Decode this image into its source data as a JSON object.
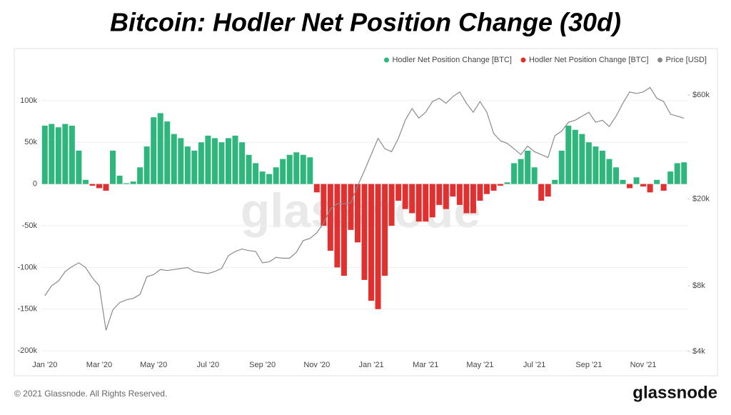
{
  "chart_data": {
    "type": "bar",
    "title": "Bitcoin: Hodler Net Position Change (30d)",
    "watermark": "glassnode",
    "footer": "© 2021 Glassnode. All Rights Reserved.",
    "logo": "glassnode",
    "categories": [
      "Jan '20",
      null,
      null,
      null,
      null,
      null,
      null,
      null,
      "Mar '20",
      null,
      null,
      null,
      null,
      null,
      null,
      null,
      "May '20",
      null,
      null,
      null,
      null,
      null,
      null,
      null,
      "Jul '20",
      null,
      null,
      null,
      null,
      null,
      null,
      null,
      "Sep '20",
      null,
      null,
      null,
      null,
      null,
      null,
      null,
      "Nov '20",
      null,
      null,
      null,
      null,
      null,
      null,
      null,
      "Jan '21",
      null,
      null,
      null,
      null,
      null,
      null,
      null,
      "Mar '21",
      null,
      null,
      null,
      null,
      null,
      null,
      null,
      "May '21",
      null,
      null,
      null,
      null,
      null,
      null,
      null,
      "Jul '21",
      null,
      null,
      null,
      null,
      null,
      null,
      null,
      "Sep '21",
      null,
      null,
      null,
      null,
      null,
      null,
      null,
      "Nov '21",
      null,
      null,
      null,
      null,
      null,
      null
    ],
    "series": [
      {
        "name": "Hodler Net Position Change [BTC]",
        "color": "#2fb67c",
        "values": [
          70000,
          72000,
          68000,
          72000,
          70000,
          40000,
          5000,
          null,
          null,
          null,
          40000,
          10000,
          1000,
          3000,
          20000,
          45000,
          80000,
          85000,
          75000,
          60000,
          55000,
          45000,
          40000,
          50000,
          58000,
          55000,
          50000,
          55000,
          58000,
          50000,
          35000,
          25000,
          15000,
          12000,
          20000,
          30000,
          35000,
          38000,
          35000,
          32000,
          null,
          null,
          null,
          null,
          null,
          null,
          null,
          null,
          null,
          null,
          null,
          null,
          null,
          null,
          null,
          null,
          null,
          null,
          null,
          null,
          null,
          null,
          null,
          null,
          null,
          null,
          null,
          null,
          2000,
          25000,
          30000,
          40000,
          20000,
          null,
          null,
          5000,
          40000,
          70000,
          65000,
          60000,
          50000,
          45000,
          40000,
          30000,
          20000,
          5000,
          null,
          8000,
          null,
          null,
          5000,
          null,
          15000,
          25000,
          26000
        ]
      },
      {
        "name": "Hodler Net Position Change [BTC]",
        "color": "#e0302f",
        "values": [
          null,
          null,
          null,
          null,
          null,
          null,
          null,
          -2000,
          -5000,
          -8000,
          null,
          null,
          null,
          null,
          null,
          null,
          null,
          null,
          null,
          null,
          null,
          null,
          null,
          null,
          null,
          null,
          null,
          null,
          null,
          null,
          null,
          null,
          null,
          null,
          null,
          null,
          null,
          null,
          null,
          null,
          -10000,
          -50000,
          -80000,
          -100000,
          -110000,
          -55000,
          -70000,
          -115000,
          -140000,
          -150000,
          -110000,
          -50000,
          -20000,
          -30000,
          -35000,
          -45000,
          -45000,
          -40000,
          -25000,
          -30000,
          -15000,
          -25000,
          -35000,
          -35000,
          -20000,
          -12000,
          -8000,
          -2000,
          null,
          null,
          null,
          null,
          null,
          -20000,
          -15000,
          null,
          null,
          null,
          null,
          null,
          null,
          null,
          null,
          null,
          null,
          null,
          -5000,
          null,
          -3000,
          -10000,
          null,
          -8000,
          null,
          null,
          null
        ]
      },
      {
        "name": "Price [USD]",
        "color": "#8a8a8a",
        "type": "line",
        "axis": "y2",
        "values": [
          7200,
          8000,
          8400,
          9300,
          9800,
          10200,
          9700,
          8700,
          8000,
          5000,
          6200,
          6700,
          6900,
          7000,
          7300,
          8800,
          9000,
          9500,
          9400,
          9500,
          9600,
          9700,
          9300,
          9200,
          9100,
          9300,
          9600,
          11000,
          11500,
          11800,
          11600,
          11500,
          10200,
          10300,
          10800,
          10700,
          10700,
          11400,
          12900,
          13200,
          14000,
          15500,
          18000,
          19000,
          19000,
          19200,
          23000,
          27000,
          32000,
          38000,
          34000,
          33000,
          38000,
          46000,
          52000,
          47000,
          50000,
          56000,
          58000,
          55000,
          59000,
          62000,
          55000,
          50000,
          56000,
          50000,
          40000,
          37000,
          36000,
          34000,
          32000,
          35000,
          33000,
          32000,
          31000,
          39000,
          41000,
          45000,
          46000,
          48000,
          50000,
          45000,
          46000,
          43000,
          48000,
          55000,
          62000,
          61000,
          62000,
          65000,
          58000,
          56000,
          49000,
          48000,
          47000
        ]
      }
    ],
    "ylim": [
      -205000,
      135000
    ],
    "yticks": [
      {
        "value": -200000,
        "label": "-200k"
      },
      {
        "value": -150000,
        "label": "-150k"
      },
      {
        "value": -100000,
        "label": "-100k"
      },
      {
        "value": -50000,
        "label": "-50k"
      },
      0,
      {
        "value": 50000,
        "label": "50k"
      },
      {
        "value": 100000,
        "label": "100k"
      }
    ],
    "y2lim": [
      3850,
      77000
    ],
    "y2log": true,
    "y2ticks": [
      {
        "value": 4000,
        "label": "$4k"
      },
      {
        "value": 8000,
        "label": "$8k"
      },
      {
        "value": 20000,
        "label": "$20k"
      },
      {
        "value": 60000,
        "label": "$60k"
      }
    ],
    "grid": true,
    "legend": "top-right"
  }
}
